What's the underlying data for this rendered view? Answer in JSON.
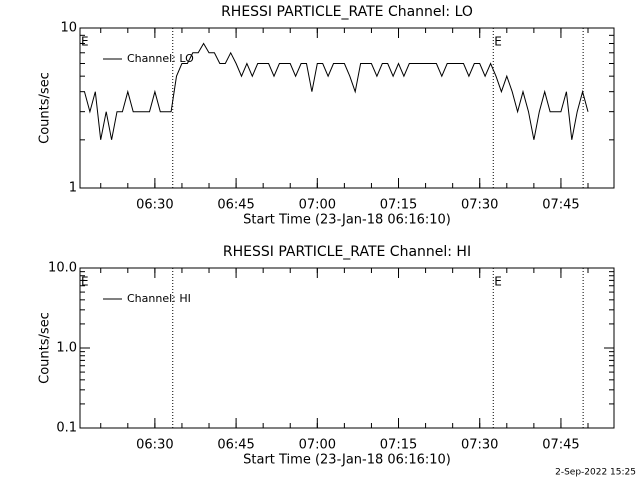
{
  "chart_data": [
    {
      "type": "line",
      "title": "RHESSI PARTICLE_RATE Channel: LO",
      "ylabel": "Counts/sec",
      "xlabel": "Start Time (23-Jan-18 06:16:10)",
      "log_y": true,
      "ylim": [
        1,
        10
      ],
      "yticks": [
        1,
        10
      ],
      "xlim": [
        376.17,
        474.8
      ],
      "xticks": [
        {
          "value": 390,
          "label": "06:30"
        },
        {
          "value": 405,
          "label": "06:45"
        },
        {
          "value": 420,
          "label": "07:00"
        },
        {
          "value": 435,
          "label": "07:15"
        },
        {
          "value": 450,
          "label": "07:30"
        },
        {
          "value": 465,
          "label": "07:45"
        }
      ],
      "vlines": [
        393.3,
        452.5,
        469.1
      ],
      "events": [
        {
          "x": 376.17,
          "label": "E"
        },
        {
          "x": 452.5,
          "label": "E"
        }
      ],
      "x": [
        377,
        378,
        379,
        380,
        381,
        382,
        383,
        384,
        385,
        386,
        387,
        388,
        389,
        390,
        391,
        392,
        393,
        394,
        395,
        396,
        397,
        398,
        399,
        400,
        401,
        402,
        403,
        404,
        405,
        406,
        407,
        408,
        409,
        410,
        411,
        412,
        413,
        414,
        415,
        416,
        417,
        418,
        419,
        420,
        421,
        422,
        423,
        424,
        425,
        426,
        427,
        428,
        429,
        430,
        431,
        432,
        433,
        434,
        435,
        436,
        437,
        438,
        439,
        440,
        441,
        442,
        443,
        444,
        445,
        446,
        447,
        448,
        449,
        450,
        451,
        452,
        453,
        454,
        455,
        456,
        457,
        458,
        459,
        460,
        461,
        462,
        463,
        464,
        465,
        466,
        467,
        468,
        469,
        470
      ],
      "series": [
        {
          "name": "Channel: LO",
          "color": "#000000",
          "values": [
            4,
            3,
            4,
            2,
            3,
            2,
            3,
            3,
            4,
            3,
            3,
            3,
            3,
            4,
            3,
            3,
            3,
            5,
            6,
            6,
            7,
            7,
            8,
            7,
            7,
            6,
            6,
            7,
            6,
            5,
            6,
            5,
            6,
            6,
            6,
            5,
            6,
            6,
            6,
            5,
            6,
            6,
            4,
            6,
            6,
            5,
            6,
            6,
            6,
            5,
            4,
            6,
            6,
            6,
            5,
            6,
            6,
            5,
            6,
            5,
            6,
            6,
            6,
            6,
            6,
            6,
            5,
            6,
            6,
            6,
            6,
            5,
            6,
            6,
            5,
            6,
            5,
            4,
            5,
            4,
            3,
            4,
            3,
            2,
            3,
            4,
            3,
            3,
            3,
            4,
            2,
            3,
            4,
            3
          ]
        }
      ]
    },
    {
      "type": "line",
      "title": "RHESSI PARTICLE_RATE Channel: HI",
      "ylabel": "Counts/sec",
      "xlabel": "Start Time (23-Jan-18 06:16:10)",
      "log_y": true,
      "ylim": [
        0.1,
        10
      ],
      "yticks": [
        0.1,
        {
          "value": 1,
          "label": "1.0"
        },
        {
          "value": 10,
          "label": "10.0"
        }
      ],
      "xlim": [
        376.17,
        474.8
      ],
      "xticks": [
        {
          "value": 390,
          "label": "06:30"
        },
        {
          "value": 405,
          "label": "06:45"
        },
        {
          "value": 420,
          "label": "07:00"
        },
        {
          "value": 435,
          "label": "07:15"
        },
        {
          "value": 450,
          "label": "07:30"
        },
        {
          "value": 465,
          "label": "07:45"
        }
      ],
      "vlines": [
        393.3,
        452.5,
        469.1
      ],
      "events": [
        {
          "x": 376.17,
          "label": "E"
        },
        {
          "x": 452.5,
          "label": "E"
        }
      ],
      "x": [],
      "series": [
        {
          "name": "Channel: HI",
          "color": "#000000",
          "values": []
        }
      ]
    }
  ],
  "footer": "2-Sep-2022 15:25"
}
